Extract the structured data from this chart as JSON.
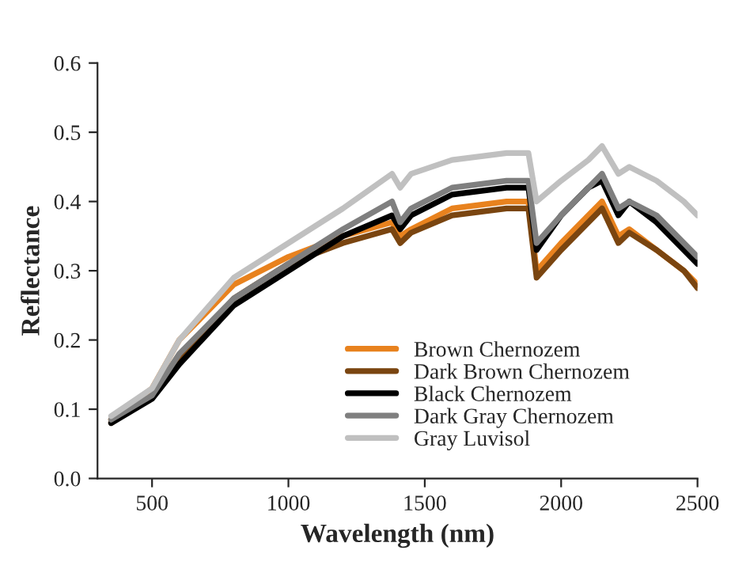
{
  "chart_data": {
    "type": "line",
    "xlabel": "Wavelength (nm)",
    "ylabel": "Reflectance",
    "x": [
      350,
      500,
      600,
      800,
      1000,
      1200,
      1380,
      1410,
      1450,
      1600,
      1800,
      1880,
      1910,
      2000,
      2100,
      2150,
      2210,
      2250,
      2350,
      2450,
      2500
    ],
    "series": [
      {
        "name": "Brown Chernozem",
        "color": "#e8821e",
        "values": [
          0.085,
          0.13,
          0.2,
          0.28,
          0.32,
          0.35,
          0.37,
          0.35,
          0.36,
          0.39,
          0.4,
          0.4,
          0.3,
          0.34,
          0.38,
          0.4,
          0.35,
          0.36,
          0.33,
          0.3,
          0.28
        ]
      },
      {
        "name": "Dark Brown Chernozem",
        "color": "#7a4510",
        "values": [
          0.08,
          0.12,
          0.17,
          0.26,
          0.31,
          0.34,
          0.36,
          0.34,
          0.355,
          0.38,
          0.39,
          0.39,
          0.29,
          0.33,
          0.37,
          0.39,
          0.34,
          0.355,
          0.33,
          0.3,
          0.275
        ]
      },
      {
        "name": "Black Chernozem",
        "color": "#000000",
        "values": [
          0.08,
          0.115,
          0.165,
          0.25,
          0.3,
          0.35,
          0.38,
          0.36,
          0.38,
          0.41,
          0.42,
          0.42,
          0.33,
          0.38,
          0.42,
          0.43,
          0.38,
          0.4,
          0.37,
          0.33,
          0.31
        ]
      },
      {
        "name": "Dark Gray Chernozem",
        "color": "#7f7f7f",
        "values": [
          0.085,
          0.12,
          0.18,
          0.26,
          0.31,
          0.36,
          0.4,
          0.37,
          0.39,
          0.42,
          0.43,
          0.43,
          0.34,
          0.38,
          0.42,
          0.44,
          0.39,
          0.4,
          0.38,
          0.34,
          0.32
        ]
      },
      {
        "name": "Gray Luvisol",
        "color": "#c0c0c0",
        "values": [
          0.09,
          0.13,
          0.2,
          0.29,
          0.34,
          0.39,
          0.44,
          0.42,
          0.44,
          0.46,
          0.47,
          0.47,
          0.4,
          0.43,
          0.46,
          0.48,
          0.44,
          0.45,
          0.43,
          0.4,
          0.38
        ]
      }
    ],
    "xlim": [
      300,
      2500
    ],
    "xticks": [
      500,
      1000,
      1500,
      2000,
      2500
    ],
    "ylim": [
      0,
      0.6
    ],
    "yticks": [
      {
        "value": 0,
        "label": "0.0"
      },
      {
        "value": 0.1,
        "label": "0.1"
      },
      {
        "value": 0.2,
        "label": "0.2"
      },
      {
        "value": 0.3,
        "label": "0.3"
      },
      {
        "value": 0.4,
        "label": "0.4"
      },
      {
        "value": 0.5,
        "label": "0.5"
      },
      {
        "value": 0.6,
        "label": "0.6"
      }
    ],
    "legend": "bottom right",
    "marker": "none",
    "line_style": "solid"
  }
}
